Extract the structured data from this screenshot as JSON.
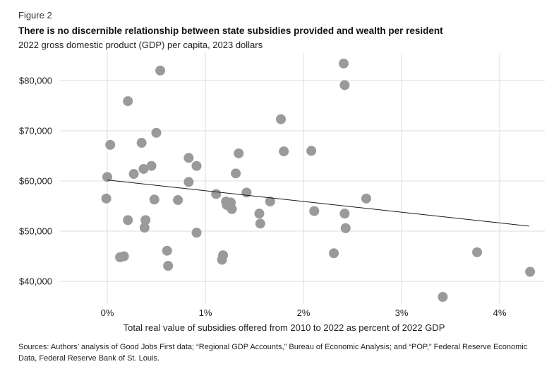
{
  "figure_label": "Figure 2",
  "source_note": "Sources: Authors’ analysis of Good Jobs First data; “Regional GDP Accounts,” Bureau of Economic Analysis; and “POP,” Federal Reserve Economic Data, Federal Reserve Bank of St. Louis.",
  "colors": {
    "point": "#9a9a9a",
    "grid": "#dcdcdc",
    "trend": "#1a1a1a",
    "text": "#222222"
  },
  "chart_data": {
    "type": "scatter",
    "title": "There is no discernible relationship between state subsidies provided and wealth per resident",
    "subtitle": "2022 gross domestic product (GDP) per capita, 2023 dollars",
    "xlabel": "Total real value of subsidies offered from 2010 to 2022 as percent of 2022 GDP",
    "ylabel": "",
    "xlim": [
      -0.9,
      4.6
    ],
    "ylim": [
      35000,
      85000
    ],
    "grid": true,
    "x_ticks": [
      0,
      1,
      2,
      3,
      4
    ],
    "x_tick_labels": [
      "0%",
      "1%",
      "2%",
      "3%",
      "4%"
    ],
    "y_ticks": [
      40000,
      50000,
      60000,
      70000,
      80000
    ],
    "y_tick_labels": [
      "$40,000",
      "$50,000",
      "$60,000",
      "$70,000",
      "$80,000"
    ],
    "trendline": {
      "x": [
        0,
        4.3
      ],
      "y": [
        60200,
        51000
      ]
    },
    "points": [
      {
        "x": 0.0,
        "y": 60800
      },
      {
        "x": -0.01,
        "y": 56500
      },
      {
        "x": 0.03,
        "y": 67200
      },
      {
        "x": 0.13,
        "y": 44800
      },
      {
        "x": 0.17,
        "y": 45000
      },
      {
        "x": 0.21,
        "y": 75900
      },
      {
        "x": 0.21,
        "y": 52200
      },
      {
        "x": 0.27,
        "y": 61400
      },
      {
        "x": 0.35,
        "y": 67600
      },
      {
        "x": 0.37,
        "y": 62400
      },
      {
        "x": 0.38,
        "y": 50700
      },
      {
        "x": 0.39,
        "y": 52200
      },
      {
        "x": 0.45,
        "y": 63000
      },
      {
        "x": 0.48,
        "y": 56300
      },
      {
        "x": 0.5,
        "y": 69600
      },
      {
        "x": 0.54,
        "y": 82000
      },
      {
        "x": 0.61,
        "y": 46100
      },
      {
        "x": 0.62,
        "y": 43100
      },
      {
        "x": 0.72,
        "y": 56200
      },
      {
        "x": 0.83,
        "y": 64600
      },
      {
        "x": 0.83,
        "y": 59800
      },
      {
        "x": 0.91,
        "y": 63000
      },
      {
        "x": 0.91,
        "y": 49700
      },
      {
        "x": 1.11,
        "y": 57400
      },
      {
        "x": 1.17,
        "y": 44300
      },
      {
        "x": 1.18,
        "y": 45200
      },
      {
        "x": 1.21,
        "y": 55900
      },
      {
        "x": 1.22,
        "y": 55200
      },
      {
        "x": 1.26,
        "y": 55700
      },
      {
        "x": 1.27,
        "y": 54400
      },
      {
        "x": 1.31,
        "y": 61500
      },
      {
        "x": 1.34,
        "y": 65500
      },
      {
        "x": 1.42,
        "y": 57700
      },
      {
        "x": 1.55,
        "y": 53500
      },
      {
        "x": 1.56,
        "y": 51500
      },
      {
        "x": 1.66,
        "y": 55900
      },
      {
        "x": 1.77,
        "y": 72300
      },
      {
        "x": 1.8,
        "y": 65900
      },
      {
        "x": 2.08,
        "y": 66000
      },
      {
        "x": 2.11,
        "y": 54000
      },
      {
        "x": 2.31,
        "y": 45600
      },
      {
        "x": 2.41,
        "y": 83400
      },
      {
        "x": 2.42,
        "y": 79100
      },
      {
        "x": 2.42,
        "y": 53500
      },
      {
        "x": 2.43,
        "y": 50600
      },
      {
        "x": 2.64,
        "y": 56500
      },
      {
        "x": 3.42,
        "y": 36900
      },
      {
        "x": 3.77,
        "y": 45800
      },
      {
        "x": 4.31,
        "y": 41900
      }
    ]
  }
}
